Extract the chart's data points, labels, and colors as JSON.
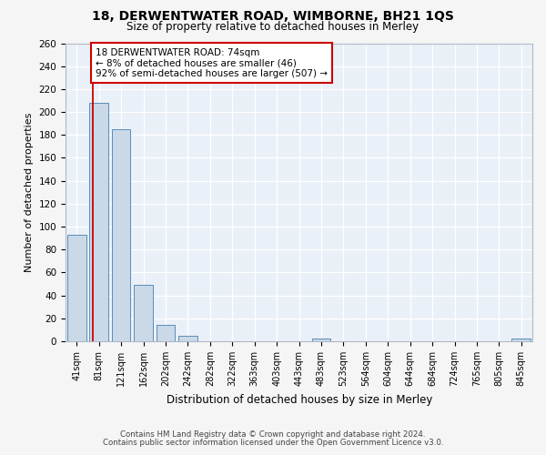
{
  "title": "18, DERWENTWATER ROAD, WIMBORNE, BH21 1QS",
  "subtitle": "Size of property relative to detached houses in Merley",
  "xlabel": "Distribution of detached houses by size in Merley",
  "ylabel": "Number of detached properties",
  "categories": [
    "41sqm",
    "81sqm",
    "121sqm",
    "162sqm",
    "202sqm",
    "242sqm",
    "282sqm",
    "322sqm",
    "363sqm",
    "403sqm",
    "443sqm",
    "483sqm",
    "523sqm",
    "564sqm",
    "604sqm",
    "644sqm",
    "684sqm",
    "724sqm",
    "765sqm",
    "805sqm",
    "845sqm"
  ],
  "values": [
    93,
    208,
    185,
    49,
    14,
    5,
    0,
    0,
    0,
    0,
    0,
    2,
    0,
    0,
    0,
    0,
    0,
    0,
    0,
    0,
    2
  ],
  "bar_color": "#c9d9e8",
  "bar_edge_color": "#5b8db8",
  "background_color": "#eaf0f8",
  "grid_color": "#ffffff",
  "property_line_x": 0.74,
  "annotation_text": "18 DERWENTWATER ROAD: 74sqm\n← 8% of detached houses are smaller (46)\n92% of semi-detached houses are larger (507) →",
  "annotation_box_color": "#ffffff",
  "annotation_box_edge_color": "#cc0000",
  "property_line_color": "#cc0000",
  "ylim": [
    0,
    260
  ],
  "yticks": [
    0,
    20,
    40,
    60,
    80,
    100,
    120,
    140,
    160,
    180,
    200,
    220,
    240,
    260
  ],
  "footer_line1": "Contains HM Land Registry data © Crown copyright and database right 2024.",
  "footer_line2": "Contains public sector information licensed under the Open Government Licence v3.0.",
  "fig_bg": "#f5f5f5"
}
